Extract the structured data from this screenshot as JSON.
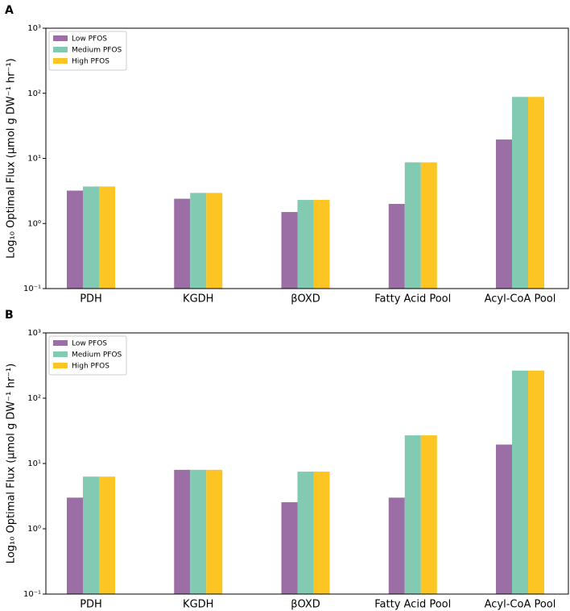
{
  "chart_data": [
    {
      "type": "bar",
      "panel": "A",
      "ylabel": "Log₁₀ Optimal Flux (μmol g DW⁻¹ hr⁻¹)",
      "log_scale": true,
      "legend": "upper left",
      "categories": [
        "PDH",
        "KGDH",
        "βOXD",
        "Fatty Acid Pool",
        "Acyl-CoA Pool"
      ],
      "series": [
        {
          "name": "Low PFOS",
          "color": "#9b6fa6",
          "values": [
            3.2,
            2.4,
            1.5,
            2.0,
            19.5
          ]
        },
        {
          "name": "Medium PFOS",
          "color": "#82cbb2",
          "values": [
            3.7,
            2.95,
            2.3,
            8.7,
            88
          ]
        },
        {
          "name": "High PFOS",
          "color": "#fdc524",
          "values": [
            3.7,
            2.95,
            2.3,
            8.7,
            88
          ]
        }
      ],
      "ylim": [
        0.1,
        1000
      ],
      "yticks": [
        {
          "value": 0.1,
          "label": "10⁻¹"
        },
        {
          "value": 1,
          "label": "10⁰"
        },
        {
          "value": 10,
          "label": "10¹"
        },
        {
          "value": 100,
          "label": "10²"
        },
        {
          "value": 1000,
          "label": "10³"
        }
      ]
    },
    {
      "type": "bar",
      "panel": "B",
      "ylabel": "Log₁₀ Optimal Flux (μmol g DW⁻¹ hr⁻¹)",
      "log_scale": true,
      "legend": "upper left",
      "categories": [
        "PDH",
        "KGDH",
        "βOXD",
        "Fatty Acid Pool",
        "Acyl-CoA Pool"
      ],
      "series": [
        {
          "name": "Low PFOS",
          "color": "#9b6fa6",
          "values": [
            3.0,
            8.0,
            2.55,
            3.0,
            19.5
          ]
        },
        {
          "name": "Medium PFOS",
          "color": "#82cbb2",
          "values": [
            6.3,
            8.0,
            7.5,
            27,
            265
          ]
        },
        {
          "name": "High PFOS",
          "color": "#fdc524",
          "values": [
            6.3,
            8.0,
            7.5,
            27,
            265
          ]
        }
      ],
      "ylim": [
        0.1,
        1000
      ],
      "yticks": [
        {
          "value": 0.1,
          "label": "10⁻¹"
        },
        {
          "value": 1,
          "label": "10⁰"
        },
        {
          "value": 10,
          "label": "10¹"
        },
        {
          "value": 100,
          "label": "10²"
        },
        {
          "value": 1000,
          "label": "10³"
        }
      ]
    }
  ]
}
